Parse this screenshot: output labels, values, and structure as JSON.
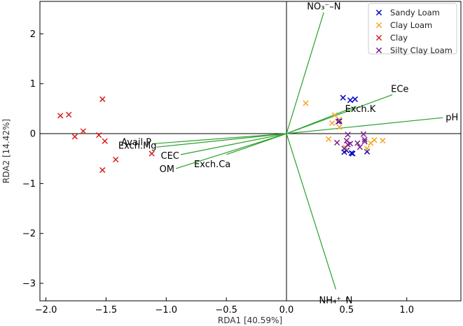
{
  "chart_data": {
    "type": "scatter",
    "title": "",
    "xlabel": "RDA1 [40.59%]",
    "ylabel": "RDA2 [14.42%]",
    "xlim": [
      -2.05,
      1.45
    ],
    "ylim": [
      -3.35,
      2.65
    ],
    "xticks": [
      -2.0,
      -1.5,
      -1.0,
      -0.5,
      0.0,
      0.5,
      1.0
    ],
    "xtick_labels": [
      "−2.0",
      "−1.5",
      "−1.0",
      "−0.5",
      "0.0",
      "0.5",
      "1.0"
    ],
    "yticks": [
      -3,
      -2,
      -1,
      0,
      1,
      2
    ],
    "ytick_labels": [
      "−3",
      "−2",
      "−1",
      "0",
      "1",
      "2"
    ],
    "legend_position": "top-right",
    "series": [
      {
        "name": "Sandy Loam",
        "color": "#0000cc",
        "marker": "x",
        "points": [
          [
            0.47,
            0.72
          ],
          [
            0.53,
            0.67
          ],
          [
            0.57,
            0.69
          ],
          [
            0.48,
            -0.37
          ],
          [
            0.5,
            -0.34
          ],
          [
            0.55,
            -0.4
          ],
          [
            0.54,
            -0.39
          ],
          [
            0.67,
            -0.36
          ],
          [
            0.44,
            0.25
          ]
        ]
      },
      {
        "name": "Clay Loam",
        "color": "#f5a623",
        "marker": "x",
        "points": [
          [
            0.16,
            0.61
          ],
          [
            0.4,
            0.37
          ],
          [
            0.44,
            0.28
          ],
          [
            0.38,
            0.21
          ],
          [
            0.44,
            0.13
          ],
          [
            0.35,
            -0.11
          ],
          [
            0.67,
            -0.3
          ],
          [
            0.7,
            -0.19
          ],
          [
            0.73,
            -0.13
          ],
          [
            0.8,
            -0.14
          ],
          [
            0.49,
            -0.28
          ]
        ]
      },
      {
        "name": "Clay",
        "color": "#d62020",
        "marker": "x",
        "points": [
          [
            -1.53,
            0.69
          ],
          [
            -1.88,
            0.36
          ],
          [
            -1.81,
            0.38
          ],
          [
            -1.69,
            0.05
          ],
          [
            -1.76,
            -0.06
          ],
          [
            -1.56,
            -0.03
          ],
          [
            -1.51,
            -0.15
          ],
          [
            -1.42,
            -0.52
          ],
          [
            -1.53,
            -0.73
          ],
          [
            -1.12,
            -0.4
          ]
        ]
      },
      {
        "name": "Silty Clay Loam",
        "color": "#7a1f8c",
        "marker": "x",
        "points": [
          [
            0.43,
            0.24
          ],
          [
            0.51,
            -0.02
          ],
          [
            0.5,
            -0.14
          ],
          [
            0.51,
            -0.22
          ],
          [
            0.53,
            -0.2
          ],
          [
            0.59,
            -0.19
          ],
          [
            0.61,
            -0.27
          ],
          [
            0.65,
            -0.16
          ],
          [
            0.64,
            -0.01
          ],
          [
            0.65,
            -0.12
          ],
          [
            0.48,
            -0.3
          ],
          [
            0.42,
            -0.18
          ]
        ]
      }
    ],
    "vectors": {
      "color": "#2ca02c",
      "items": [
        {
          "name": "NO3-N",
          "x": 0.31,
          "y": 2.43
        },
        {
          "name": "ECe",
          "x": 0.88,
          "y": 0.78
        },
        {
          "name": "Exch.K",
          "x": 0.58,
          "y": 0.55
        },
        {
          "name": "pH",
          "x": 1.3,
          "y": 0.32
        },
        {
          "name": "Avail.P",
          "x": -1.1,
          "y": -0.2
        },
        {
          "name": "Exch.Mg",
          "x": -1.08,
          "y": -0.27
        },
        {
          "name": "CEC",
          "x": -0.88,
          "y": -0.42
        },
        {
          "name": "OM",
          "x": -0.92,
          "y": -0.7
        },
        {
          "name": "Exch.Ca",
          "x": -0.5,
          "y": -0.42
        },
        {
          "name": "NH4-N",
          "x": 0.41,
          "y": -3.12
        }
      ]
    },
    "vector_labels": {
      "NO3-N": "NO₃⁻–N",
      "ECe": "ECe",
      "Exch.K": "Exch.K",
      "pH": "pH",
      "Avail.P": "Avail.P",
      "Exch.Mg": "Exch.Mg",
      "CEC": "CEC",
      "OM": "OM",
      "Exch.Ca": "Exch.Ca",
      "NH4-N": "NH₄⁺–N"
    }
  }
}
